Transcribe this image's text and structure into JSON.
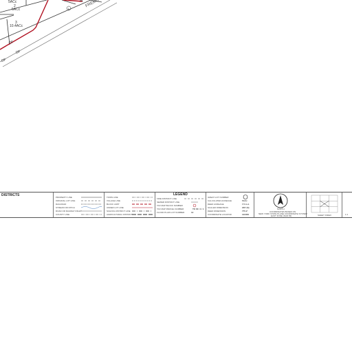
{
  "map": {
    "parcels": [
      {
        "number": "2",
        "acreage": "5ACc"
      },
      {
        "number": "3",
        "acreage": "10.4ACc"
      }
    ],
    "road_name": "FREMONT",
    "road_fragment": "H",
    "circle_label": "1",
    "upper_acreage": "5ACc",
    "misc_labels": [
      "OF",
      "OF",
      "OF"
    ]
  },
  "legend_bar": {
    "districts_label": "DISTRICTS",
    "legend_title": "LEGEND",
    "col1": [
      "PROPERTY LINE",
      "ORIGINAL LOT LINE",
      "RAILROAD",
      "STREAM OR DITCH",
      "ROAD OR RAILWAY RIGHT",
      "COUNTY LINE"
    ],
    "col2": [
      "TOWN LINE",
      "VILLAGE LINE",
      "BLOCK LIMIT",
      "UNDER LOT LINE",
      "SCHOOL DISTRICT LINE",
      "AGRICULTURAL DISTRICT"
    ],
    "col3": [
      "FIRE DISTRICT LINE",
      "SEWER DISTRICT LINE",
      "TAX MAP BLOCK NUMBER",
      "TAX MAP PARCEL NUMBER",
      "FLOOD PLAIN LOT NUMBER"
    ],
    "col3_samples": [
      "",
      "",
      "",
      "TO 00 / 1 / 1",
      "12"
    ],
    "col4": [
      "GREAT LOT NUMBER",
      "CALCULATED ACREAGE",
      "DEED ACREAGE",
      "SCALED DIMENSION",
      "DEED DIMENSION",
      "COORDINATE LOCATOR"
    ],
    "col4_samples": [
      "",
      "5ACc",
      "7.5 A.d.",
      "220' (S)",
      "775.2'",
      "123456"
    ],
    "north": {
      "label": "NORTH",
      "note_line1": "COORDINATES BASED ON",
      "note_line2": "NEW YORK STATE PLANE COORDINATE SYSTEM",
      "note_line3": "EAST ZONE (NAD 83)"
    },
    "sheet_index_label": "SHEET INDEX",
    "sheet_cells": [
      "",
      "",
      "",
      "",
      "",
      "",
      "",
      "",
      ""
    ],
    "far_right": "1:1"
  }
}
